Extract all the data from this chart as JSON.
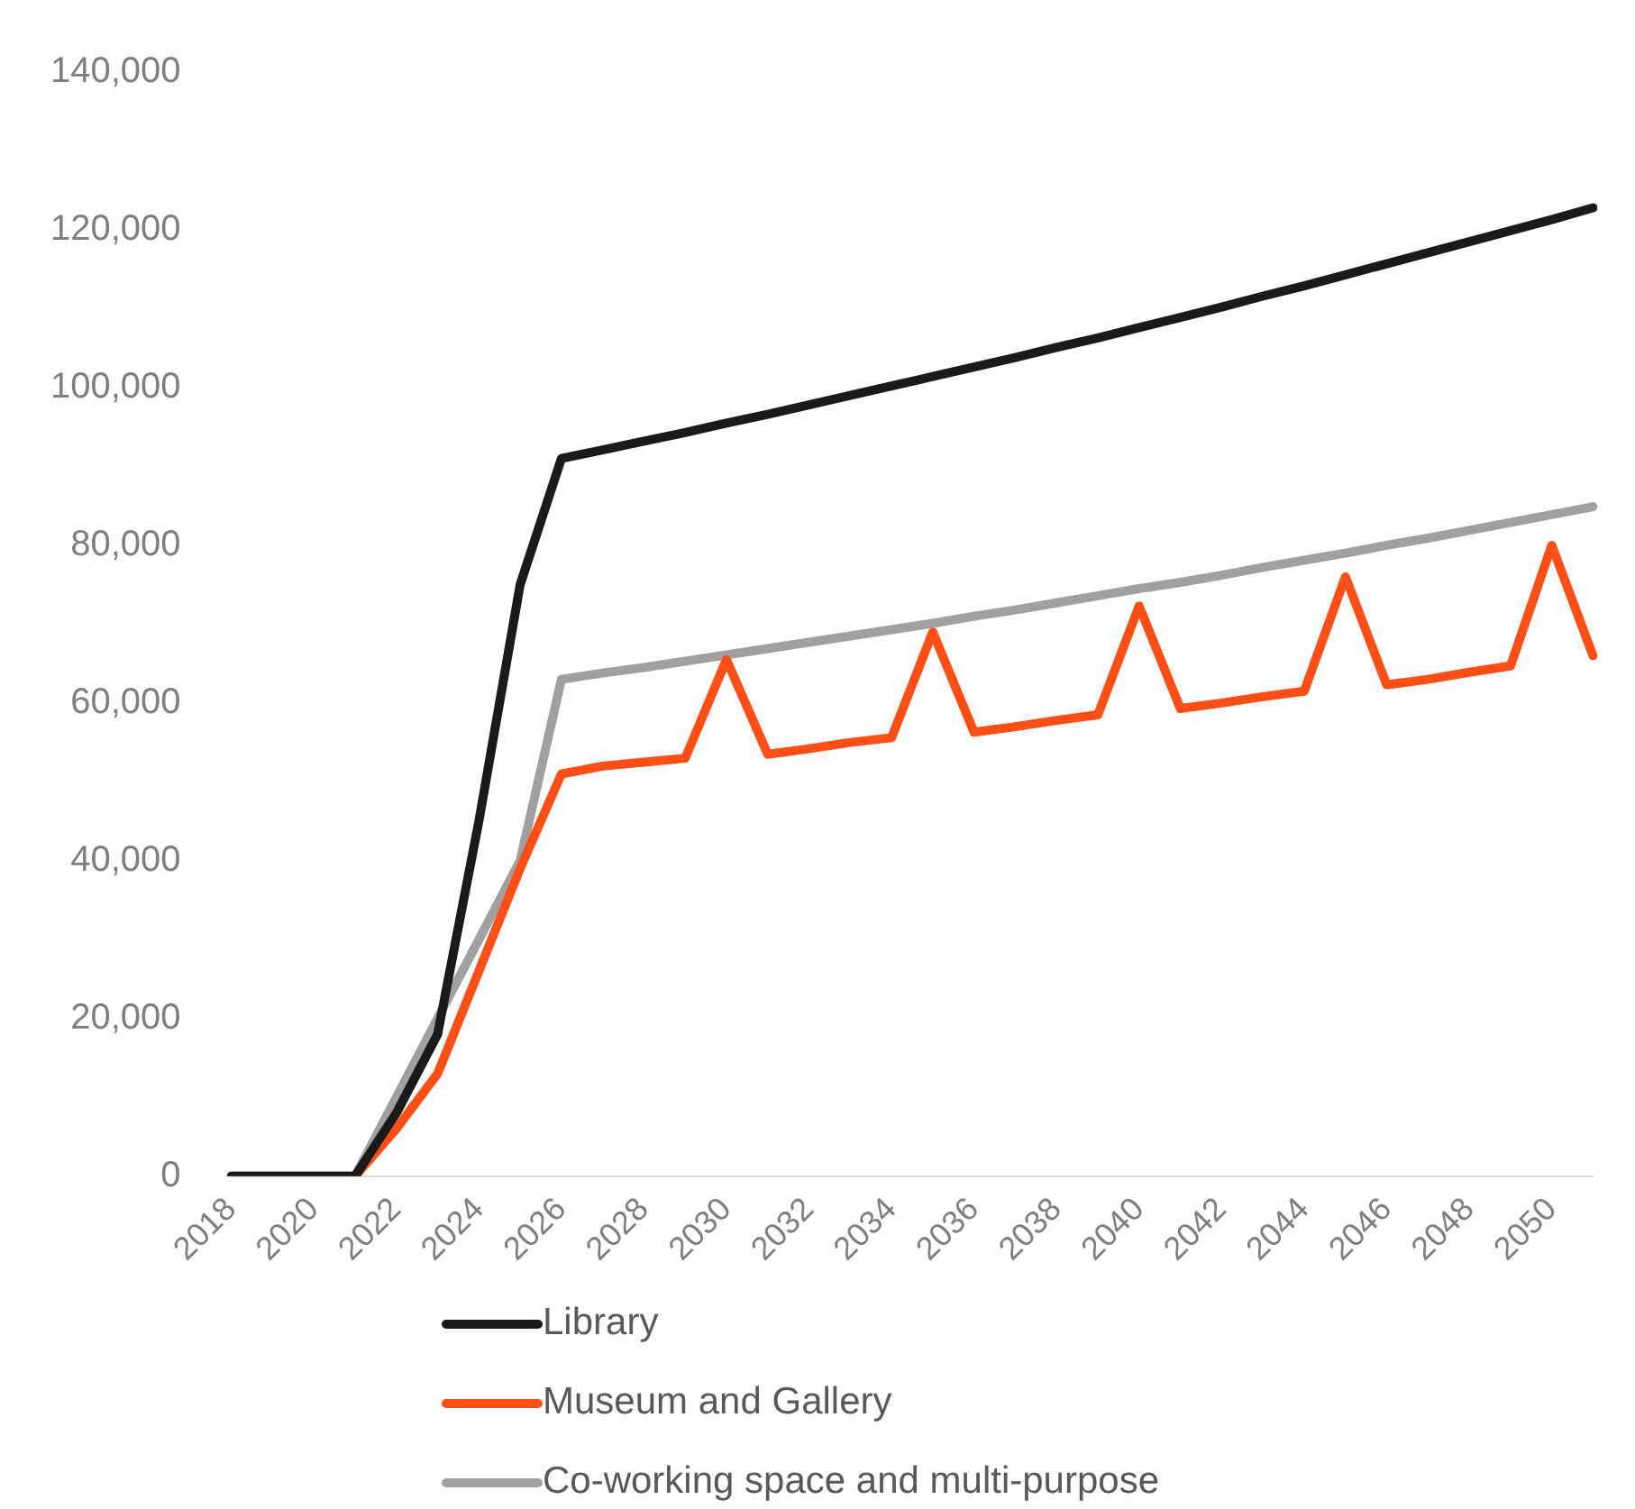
{
  "chart_data": {
    "type": "line",
    "categories": [
      "2018",
      null,
      "2020",
      null,
      "2022",
      null,
      "2024",
      null,
      "2026",
      null,
      "2028",
      null,
      "2030",
      null,
      "2032",
      null,
      "2034",
      null,
      "2036",
      null,
      "2038",
      null,
      "2040",
      null,
      "2042",
      null,
      "2044",
      null,
      "2046",
      null,
      "2048",
      null,
      "2050",
      null
    ],
    "series": [
      {
        "name": "Library",
        "color": "#1a1a1a",
        "values": [
          0,
          0,
          0,
          0,
          8000,
          18000,
          45000,
          75000,
          91000,
          92100,
          93200,
          94300,
          95500,
          96600,
          97800,
          99000,
          100200,
          101400,
          102600,
          103800,
          105100,
          106300,
          107600,
          108900,
          110200,
          111600,
          112900,
          114300,
          115700,
          117100,
          118500,
          119900,
          121300,
          122800
        ]
      },
      {
        "name": "Museum and Gallery",
        "color": "#ff4f17",
        "values": [
          null,
          null,
          null,
          0,
          6000,
          13000,
          26000,
          39000,
          51000,
          52000,
          52500,
          53000,
          65500,
          53500,
          54200,
          55000,
          55600,
          69000,
          56300,
          57000,
          57800,
          58500,
          72300,
          59300,
          60000,
          60800,
          61500,
          76000,
          62300,
          63000,
          63900,
          64700,
          80000,
          66000
        ]
      },
      {
        "name": "Co-working space and multi-purpose",
        "color": "#a0a0a0",
        "values": [
          0,
          0,
          0,
          0,
          10000,
          20000,
          30000,
          40000,
          63000,
          63800,
          64500,
          65300,
          66100,
          66900,
          67700,
          68500,
          69300,
          70100,
          71000,
          71800,
          72700,
          73600,
          74500,
          75300,
          76200,
          77200,
          78100,
          79000,
          80000,
          80900,
          81900,
          82900,
          83900,
          84900
        ]
      }
    ],
    "ylim": [
      0,
      140000
    ],
    "yticks": [
      0,
      {
        "value": 20000,
        "label": "20,000"
      },
      {
        "value": 40000,
        "label": "40,000"
      },
      {
        "value": 60000,
        "label": "60,000"
      },
      {
        "value": 80000,
        "label": "80,000"
      },
      {
        "value": 100000,
        "label": "100,000"
      },
      {
        "value": 120000,
        "label": "120,000"
      },
      {
        "value": 140000,
        "label": "140,000"
      }
    ],
    "grid": false,
    "legend": "bottom",
    "marker": "none",
    "line_style": "solid"
  }
}
